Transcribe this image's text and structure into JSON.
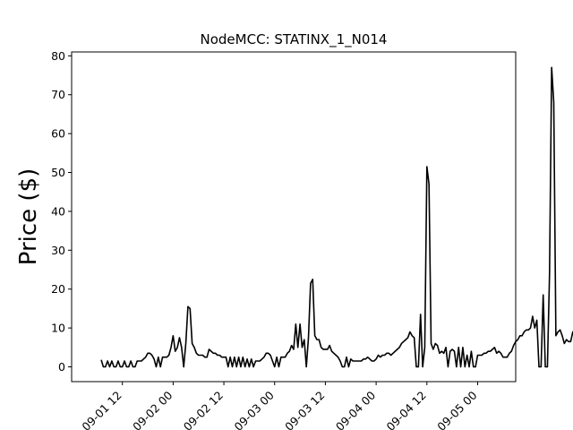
{
  "chart_data": {
    "type": "line",
    "title": "NodeMCC: STATINX_1_N014",
    "xlabel": "",
    "ylabel": "Price ($)",
    "ylim": [
      -3.8,
      81
    ],
    "xlim_hours": [
      -7.2,
      56.6
    ],
    "x_ticks": [
      {
        "hours": 12,
        "label": "09-01 12"
      },
      {
        "hours": 24,
        "label": "09-02 00"
      },
      {
        "hours": 36,
        "label": "09-02 12"
      },
      {
        "hours": 48,
        "label": "09-03 00"
      },
      {
        "hours": 60,
        "label": "09-03 12"
      },
      {
        "hours": 72,
        "label": "09-04 00"
      },
      {
        "hours": 84,
        "label": "09-04 12"
      },
      {
        "hours": 96,
        "label": "09-05 00"
      }
    ],
    "y_ticks": [
      0,
      10,
      20,
      30,
      40,
      50,
      60,
      70,
      80
    ],
    "line_color": "#000000",
    "series": [
      {
        "x_start": "09-01 07:00",
        "step_hours": 0.5,
        "values": [
          1.8,
          0,
          0,
          1.5,
          0,
          1.5,
          0,
          0,
          1.5,
          0,
          0,
          1.5,
          0,
          0,
          1.5,
          0,
          0,
          1.5,
          1.5,
          1.5,
          2,
          2.5,
          3.5,
          3.5,
          3,
          2,
          0,
          2.5,
          0,
          2.5,
          2.5,
          2.5,
          3,
          5,
          8,
          4,
          5,
          7.5,
          5,
          0,
          6,
          15.5,
          15,
          6,
          5,
          3.5,
          3,
          3,
          3,
          2.5,
          2.5,
          4.5,
          4,
          3.5,
          3.5,
          3,
          3,
          2.5,
          2.5,
          2.5,
          0,
          2.5,
          0,
          2.5,
          0,
          2.5,
          0,
          2.5,
          0,
          2,
          0,
          2,
          0,
          1.5,
          1.5,
          1.5,
          2,
          2.5,
          3.5,
          3.5,
          3,
          1.5,
          0,
          2.5,
          0,
          2.5,
          2.5,
          2.5,
          3.5,
          4,
          5.5,
          4.5,
          11,
          5,
          11,
          5,
          7,
          0,
          7.5,
          21.5,
          22.5,
          8,
          7,
          7,
          5,
          4.5,
          4.5,
          4.5,
          5.5,
          4,
          3.5,
          3,
          2.5,
          1.5,
          0,
          0,
          2.5,
          0,
          2,
          1.5,
          1.5,
          1.5,
          1.5,
          1.5,
          2,
          2,
          2.5,
          2,
          1.5,
          1.5,
          2,
          3,
          2.5,
          3,
          3,
          3.5,
          3.5,
          3,
          3.5,
          4,
          4.5,
          5,
          6,
          6.5,
          7,
          7.5,
          9,
          8,
          7.5,
          0,
          0,
          13.5,
          0,
          5,
          51.5,
          47,
          6,
          4.5,
          6,
          5.5,
          3.5,
          4,
          3.5,
          5,
          0,
          4,
          4.5,
          4,
          0,
          5,
          0,
          5,
          0,
          3,
          0,
          4,
          0,
          0,
          3,
          3,
          3,
          3.5,
          3.5,
          4,
          4,
          4.5,
          5,
          3.5,
          4,
          3.5,
          2.5,
          2.5,
          2.5,
          3.5,
          4,
          5.5,
          6.5,
          7,
          8,
          8,
          9,
          9.5,
          9.5,
          10,
          13,
          10,
          12,
          0,
          0,
          18.5,
          0,
          0,
          24,
          77,
          68,
          8,
          9,
          9.5,
          8,
          6,
          7,
          6.5,
          6.5,
          9,
          7,
          6,
          5.5,
          4
        ]
      }
    ]
  }
}
